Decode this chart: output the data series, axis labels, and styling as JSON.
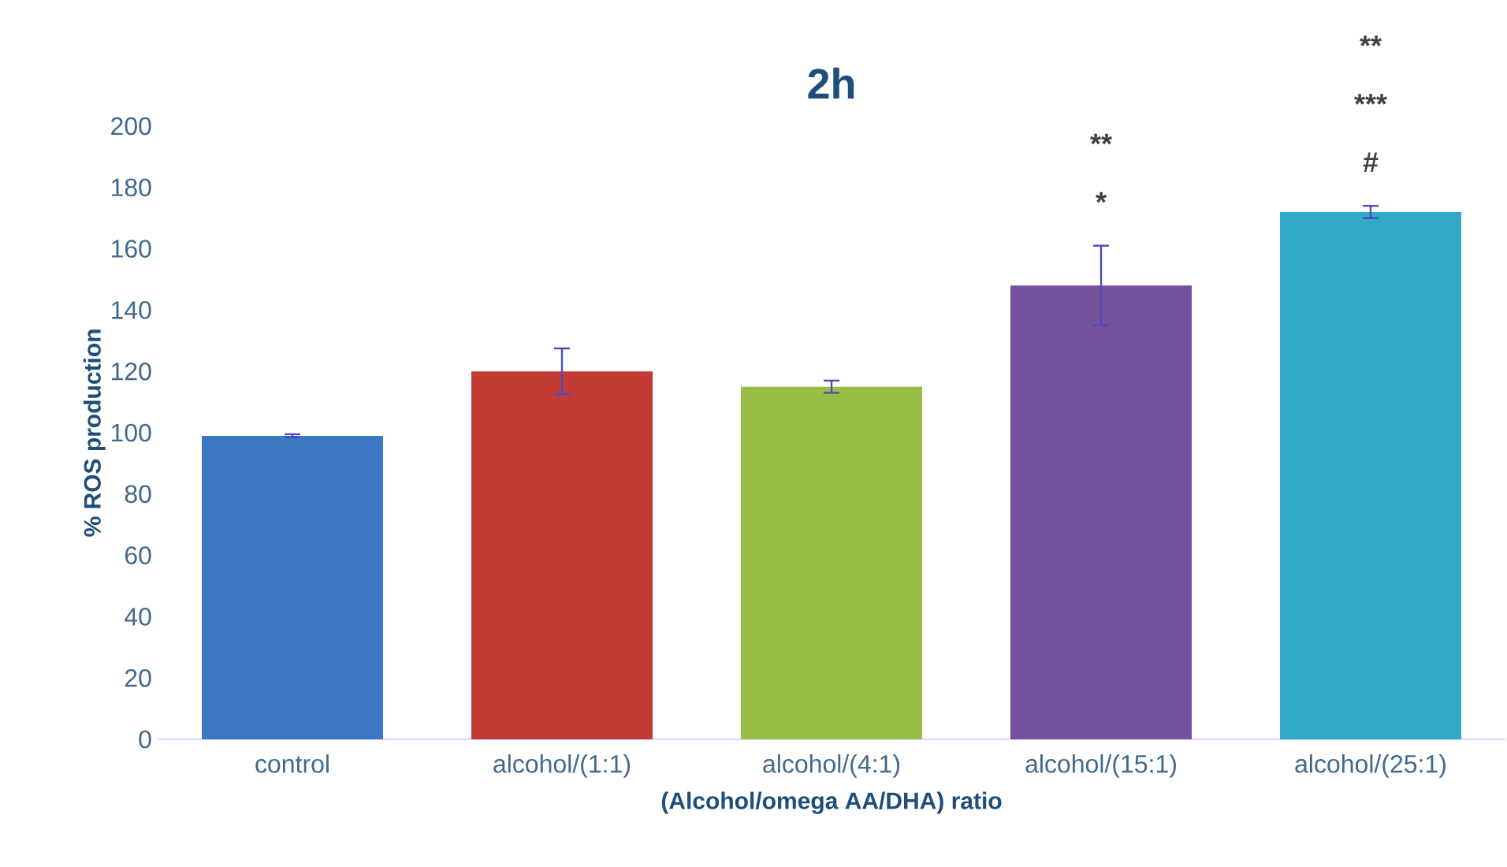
{
  "chart_data": {
    "type": "bar",
    "title": "2h",
    "xlabel": "(Alcohol/omega AA/DHA) ratio",
    "ylabel": "% ROS production",
    "categories": [
      "control",
      "alcohol/(1:1)",
      "alcohol/(4:1)",
      "alcohol/(15:1)",
      "alcohol/(25:1)"
    ],
    "values": [
      99,
      120,
      115,
      148,
      172
    ],
    "errors": [
      0.5,
      7.5,
      2,
      13,
      2
    ],
    "colors": [
      "#3a78c4",
      "#c23b35",
      "#97bd45",
      "#74529c",
      "#30a9c9"
    ],
    "ylim": [
      0,
      200
    ],
    "yticks": [
      0,
      20,
      40,
      60,
      80,
      100,
      120,
      140,
      160,
      180,
      200
    ],
    "annotations": [
      "**",
      "*",
      "**",
      "***",
      "#"
    ],
    "grid": false
  }
}
